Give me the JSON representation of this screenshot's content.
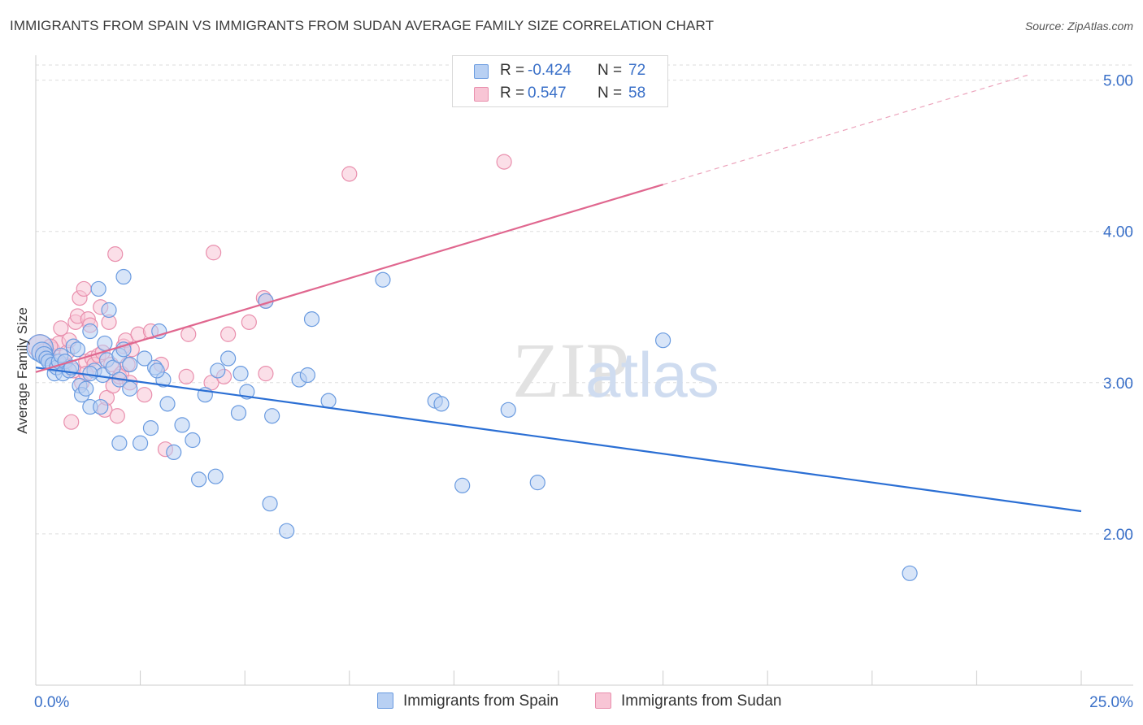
{
  "title": "IMMIGRANTS FROM SPAIN VS IMMIGRANTS FROM SUDAN AVERAGE FAMILY SIZE CORRELATION CHART",
  "source": "Source: ZipAtlas.com",
  "watermark": {
    "zip": "ZIP",
    "atlas": "atlas"
  },
  "legend": {
    "rows": [
      {
        "r_label": "R =",
        "r_value": "-0.424",
        "n_label": "N =",
        "n_value": "72"
      },
      {
        "r_label": "R =",
        "r_value": "0.547",
        "n_label": "N =",
        "n_value": "58"
      }
    ]
  },
  "bottom_legend": {
    "spain": "Immigrants from Spain",
    "sudan": "Immigrants from Sudan"
  },
  "colors": {
    "spain_fill": "#b8d0f3",
    "spain_stroke": "#6a9be0",
    "spain_line": "#2b6fd4",
    "sudan_fill": "#f8c5d5",
    "sudan_stroke": "#e98fad",
    "sudan_line": "#e0678f",
    "axis_text": "#3a70c8",
    "grid": "#dddddd"
  },
  "chart_data": {
    "type": "scatter",
    "title": "IMMIGRANTS FROM SPAIN VS IMMIGRANTS FROM SUDAN AVERAGE FAMILY SIZE CORRELATION CHART",
    "xlabel": "",
    "ylabel": "Average Family Size",
    "xlim": [
      0,
      25
    ],
    "ylim": [
      1.0,
      5.1
    ],
    "x_tick_labels": [
      "0.0%",
      "25.0%"
    ],
    "y_ticks": [
      2.0,
      3.0,
      4.0,
      5.0
    ],
    "y_tick_labels": [
      "2.00",
      "3.00",
      "4.00",
      "5.00"
    ],
    "grid": true,
    "series": [
      {
        "name": "Immigrants from Spain",
        "trend": {
          "x0": 0.0,
          "y0": 3.1,
          "x1": 25.0,
          "y1": 2.15
        },
        "points": [
          [
            0.1,
            3.23,
            1.8
          ],
          [
            0.15,
            3.2,
            1.4
          ],
          [
            0.2,
            3.18,
            1.2
          ],
          [
            0.25,
            3.16,
            1.0
          ],
          [
            0.3,
            3.14,
            1.0
          ],
          [
            0.4,
            3.12,
            1.0
          ],
          [
            0.45,
            3.06,
            1.0
          ],
          [
            0.5,
            3.1,
            1.0
          ],
          [
            0.55,
            3.14,
            1.0
          ],
          [
            0.6,
            3.18,
            1.0
          ],
          [
            0.65,
            3.06,
            1.0
          ],
          [
            0.7,
            3.14,
            1.0
          ],
          [
            0.8,
            3.08,
            1.0
          ],
          [
            0.85,
            3.1,
            1.0
          ],
          [
            0.9,
            3.24,
            1.0
          ],
          [
            1.0,
            3.22,
            1.0
          ],
          [
            1.05,
            2.98,
            1.0
          ],
          [
            1.1,
            2.92,
            1.0
          ],
          [
            1.2,
            2.96,
            1.0
          ],
          [
            1.3,
            3.34,
            1.0
          ],
          [
            1.3,
            2.84,
            1.0
          ],
          [
            1.4,
            3.08,
            1.0
          ],
          [
            1.5,
            3.62,
            1.0
          ],
          [
            1.55,
            2.84,
            1.0
          ],
          [
            1.6,
            3.05,
            1.0
          ],
          [
            1.65,
            3.26,
            1.0
          ],
          [
            1.7,
            3.15,
            1.0
          ],
          [
            1.75,
            3.48,
            1.0
          ],
          [
            1.85,
            3.1,
            1.0
          ],
          [
            2.0,
            3.18,
            1.0
          ],
          [
            2.0,
            3.02,
            1.0
          ],
          [
            2.0,
            2.6,
            1.0
          ],
          [
            2.1,
            3.22,
            1.0
          ],
          [
            2.1,
            3.7,
            1.0
          ],
          [
            2.25,
            3.12,
            1.0
          ],
          [
            2.25,
            2.96,
            1.0
          ],
          [
            2.5,
            2.6,
            1.0
          ],
          [
            2.6,
            3.16,
            1.0
          ],
          [
            2.75,
            2.7,
            1.0
          ],
          [
            2.85,
            3.1,
            1.0
          ],
          [
            2.95,
            3.34,
            1.0
          ],
          [
            3.05,
            3.02,
            1.0
          ],
          [
            3.15,
            2.86,
            1.0
          ],
          [
            3.3,
            2.54,
            1.0
          ],
          [
            3.5,
            2.72,
            1.0
          ],
          [
            3.75,
            2.62,
            1.0
          ],
          [
            3.9,
            2.36,
            1.0
          ],
          [
            4.05,
            2.92,
            1.0
          ],
          [
            4.3,
            2.38,
            1.0
          ],
          [
            4.35,
            3.08,
            1.0
          ],
          [
            4.6,
            3.16,
            1.0
          ],
          [
            4.85,
            2.8,
            1.0
          ],
          [
            4.9,
            3.06,
            1.0
          ],
          [
            5.05,
            2.94,
            1.0
          ],
          [
            5.5,
            3.54,
            1.0
          ],
          [
            5.6,
            2.2,
            1.0
          ],
          [
            5.65,
            2.78,
            1.0
          ],
          [
            6.0,
            2.02,
            1.0
          ],
          [
            6.3,
            3.02,
            1.0
          ],
          [
            6.5,
            3.05,
            1.0
          ],
          [
            6.6,
            3.42,
            1.0
          ],
          [
            7.0,
            2.88,
            1.0
          ],
          [
            8.3,
            3.68,
            1.0
          ],
          [
            9.55,
            2.88,
            1.0
          ],
          [
            9.7,
            2.86,
            1.0
          ],
          [
            10.2,
            2.32,
            1.0
          ],
          [
            11.3,
            2.82,
            1.0
          ],
          [
            12.0,
            2.34,
            1.0
          ],
          [
            15.0,
            3.28,
            1.0
          ],
          [
            20.9,
            1.74,
            1.0
          ],
          [
            1.3,
            3.06,
            1.0
          ],
          [
            2.9,
            3.08,
            1.0
          ]
        ]
      },
      {
        "name": "Immigrants from Sudan",
        "trend": {
          "x0": 0.0,
          "y0": 3.07,
          "x1": 15.0,
          "y1": 4.31,
          "dash_x1": 23.8,
          "dash_y1": 5.04
        },
        "points": [
          [
            0.1,
            3.24,
            1.6
          ],
          [
            0.2,
            3.2,
            1.2
          ],
          [
            0.3,
            3.18,
            1.0
          ],
          [
            0.4,
            3.22,
            1.0
          ],
          [
            0.5,
            3.14,
            1.0
          ],
          [
            0.55,
            3.26,
            1.0
          ],
          [
            0.6,
            3.36,
            1.0
          ],
          [
            0.7,
            3.12,
            1.0
          ],
          [
            0.75,
            3.2,
            1.0
          ],
          [
            0.8,
            3.28,
            1.0
          ],
          [
            0.85,
            2.74,
            1.0
          ],
          [
            0.9,
            3.08,
            1.0
          ],
          [
            0.95,
            3.4,
            1.0
          ],
          [
            1.0,
            3.44,
            1.0
          ],
          [
            1.05,
            3.56,
            1.0
          ],
          [
            1.1,
            3.0,
            1.0
          ],
          [
            1.15,
            3.62,
            1.0
          ],
          [
            1.2,
            3.14,
            1.0
          ],
          [
            1.25,
            3.42,
            1.0
          ],
          [
            1.3,
            3.38,
            1.0
          ],
          [
            1.35,
            3.16,
            1.0
          ],
          [
            1.4,
            3.12,
            1.0
          ],
          [
            1.5,
            3.18,
            1.0
          ],
          [
            1.55,
            3.5,
            1.0
          ],
          [
            1.6,
            3.2,
            1.0
          ],
          [
            1.65,
            2.82,
            1.0
          ],
          [
            1.7,
            2.9,
            1.0
          ],
          [
            1.75,
            3.4,
            1.0
          ],
          [
            1.8,
            3.12,
            1.0
          ],
          [
            1.85,
            2.98,
            1.0
          ],
          [
            1.9,
            3.85,
            1.0
          ],
          [
            1.95,
            2.78,
            1.0
          ],
          [
            2.0,
            3.04,
            1.0
          ],
          [
            2.05,
            3.06,
            1.0
          ],
          [
            2.1,
            3.24,
            1.0
          ],
          [
            2.15,
            3.28,
            1.0
          ],
          [
            2.2,
            3.12,
            1.0
          ],
          [
            2.25,
            3.0,
            1.0
          ],
          [
            2.45,
            3.32,
            1.0
          ],
          [
            2.6,
            2.92,
            1.0
          ],
          [
            2.75,
            3.34,
            1.0
          ],
          [
            3.0,
            3.12,
            1.0
          ],
          [
            3.1,
            2.56,
            1.0
          ],
          [
            3.6,
            3.04,
            1.0
          ],
          [
            3.65,
            3.32,
            1.0
          ],
          [
            4.2,
            3.0,
            1.0
          ],
          [
            4.25,
            3.86,
            1.0
          ],
          [
            4.5,
            3.04,
            1.0
          ],
          [
            4.6,
            3.32,
            1.0
          ],
          [
            5.1,
            3.4,
            1.0
          ],
          [
            5.45,
            3.56,
            1.0
          ],
          [
            5.5,
            3.54,
            1.0
          ],
          [
            5.5,
            3.06,
            1.0
          ],
          [
            7.5,
            4.38,
            1.0
          ],
          [
            11.2,
            4.46,
            1.0
          ],
          [
            0.35,
            3.24,
            1.0
          ],
          [
            1.2,
            3.06,
            1.0
          ],
          [
            2.3,
            3.22,
            1.0
          ]
        ]
      }
    ]
  }
}
